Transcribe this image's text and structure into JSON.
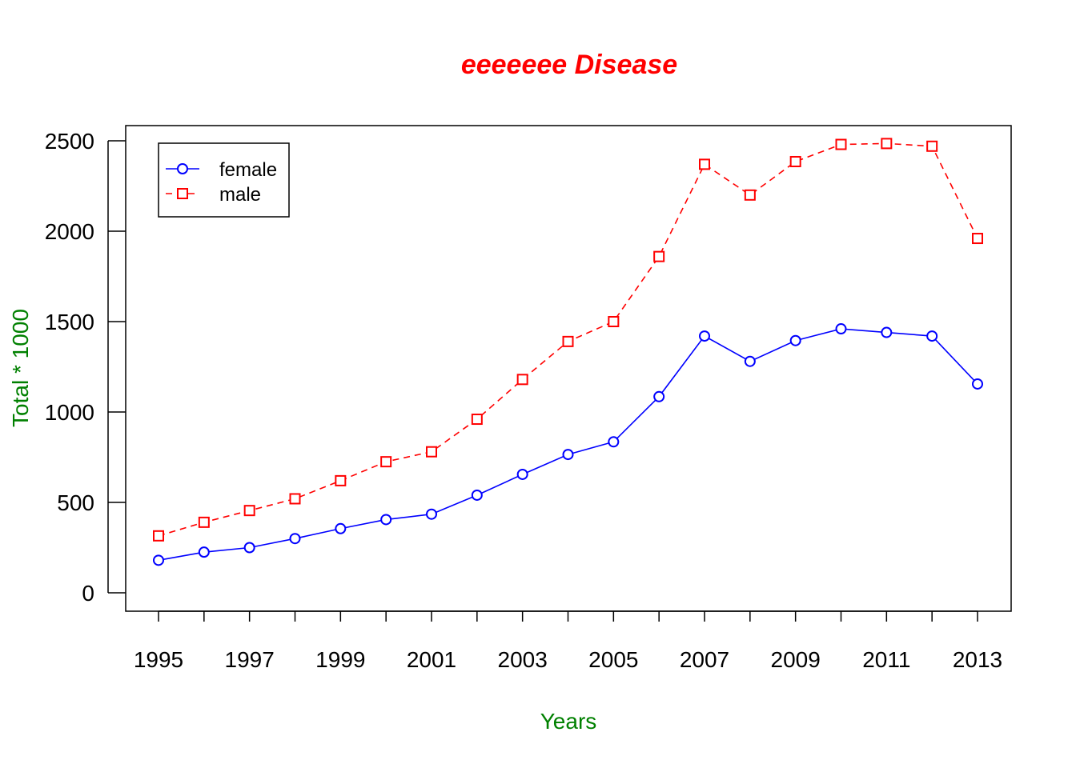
{
  "chart_data": {
    "type": "line",
    "title": "eeeeeee Disease",
    "xlabel": "Years",
    "ylabel": "Total * 1000",
    "colors": {
      "title": "#ff0000",
      "axis_labels": "#008000"
    },
    "xlim": [
      1995,
      2013
    ],
    "ylim": [
      0,
      2500
    ],
    "x_ticks": [
      1995,
      1996,
      1997,
      1998,
      1999,
      2000,
      2001,
      2002,
      2003,
      2004,
      2005,
      2006,
      2007,
      2008,
      2009,
      2010,
      2011,
      2012,
      2013
    ],
    "x_tick_labels": [
      "1995",
      "1997",
      "1999",
      "2001",
      "2003",
      "2005",
      "2007",
      "2009",
      "2011",
      "2013"
    ],
    "y_tick_labels": [
      "0",
      "500",
      "1000",
      "1500",
      "2000",
      "2500"
    ],
    "x": [
      1995,
      1996,
      1997,
      1998,
      1999,
      2000,
      2001,
      2002,
      2003,
      2004,
      2005,
      2006,
      2007,
      2008,
      2009,
      2010,
      2011,
      2012,
      2013
    ],
    "series": [
      {
        "name": "female",
        "color": "#0000ff",
        "line": "solid",
        "marker": "circle",
        "values": [
          180,
          225,
          250,
          300,
          355,
          405,
          435,
          540,
          655,
          765,
          835,
          1085,
          1420,
          1280,
          1395,
          1460,
          1440,
          1420,
          1155
        ]
      },
      {
        "name": "male",
        "color": "#ff0000",
        "line": "dashed",
        "marker": "square",
        "values": [
          315,
          390,
          455,
          520,
          620,
          725,
          780,
          960,
          1180,
          1390,
          1500,
          1860,
          2370,
          2200,
          2385,
          2480,
          2485,
          2470,
          1960
        ]
      }
    ],
    "grid": false,
    "legend_position": "top-left"
  }
}
